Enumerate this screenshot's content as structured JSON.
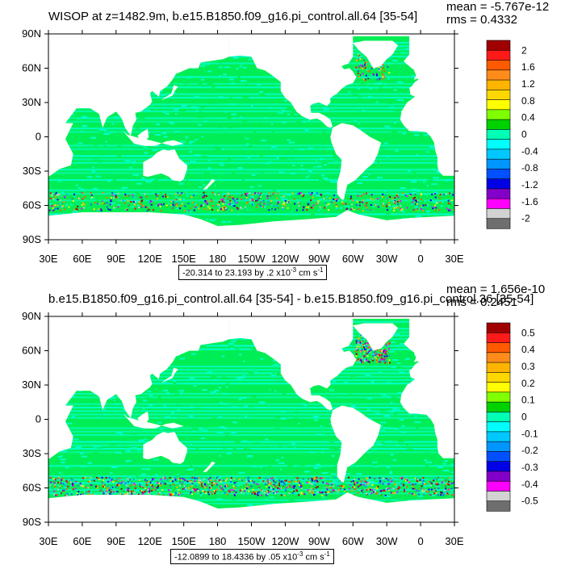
{
  "panels": [
    {
      "title": "WISOP at z=1482.9m, b.e15.B1850.f09_g16.pi_control.all.64 [35-54]",
      "mean": "mean = -5.767e-12",
      "rms": "rms = 0.4332",
      "range_text": "-20.314 to 23.193 by .2 x10",
      "range_exp": "-3",
      "range_unit": " cm s",
      "range_unit_exp": "-1",
      "colorbar_labels": [
        "2",
        "1.6",
        "1.2",
        "0.8",
        "0.4",
        "0",
        "-0.4",
        "-0.8",
        "-1.2",
        "-1.6",
        "-2"
      ]
    },
    {
      "title": "b.e15.B1850.f09_g16.pi_control.all.64 [35-54] - b.e15.B1850.f09_g16.pi_control.36 [35-54]",
      "mean": "mean = 1.656e-10",
      "rms": "rms = 0.2451",
      "range_text": "-12.0899 to 18.4336 by .05 x10",
      "range_exp": "-3",
      "range_unit": " cm s",
      "range_unit_exp": "-1",
      "colorbar_labels": [
        "0.5",
        "0.4",
        "0.3",
        "0.2",
        "0.1",
        "0",
        "-0.1",
        "-0.2",
        "-0.3",
        "-0.4",
        "-0.5"
      ]
    }
  ],
  "axes": {
    "lon_ticks": [
      "30E",
      "60E",
      "90E",
      "120E",
      "150E",
      "180",
      "150W",
      "120W",
      "90W",
      "60W",
      "30W",
      "0",
      "30E"
    ],
    "lat_ticks": [
      "90N",
      "60N",
      "30N",
      "0",
      "30S",
      "60S",
      "90S"
    ]
  },
  "colors": {
    "palette": [
      "#9b0000",
      "#ff0000",
      "#ff5a00",
      "#ff8c00",
      "#ffbe00",
      "#ffff00",
      "#32dc00",
      "#00ff40",
      "#00ffcc",
      "#00e6ff",
      "#00aaff",
      "#0064ff",
      "#0000e6",
      "#7d00d2",
      "#ff00ff",
      "#c8c8c8",
      "#6e6e6e"
    ],
    "colorbar": [
      "#a00000",
      "#ff1a1a",
      "#ff5a00",
      "#ff8c1a",
      "#ffb400",
      "#ffd700",
      "#ffff00",
      "#7fff00",
      "#00d200",
      "#00ffb4",
      "#00ffff",
      "#00c8ff",
      "#0096ff",
      "#0050ff",
      "#0000e6",
      "#8200c8",
      "#ff00ff",
      "#d2d2d2",
      "#6e6e6e"
    ],
    "ocean_base": "#00ee55",
    "ocean_alt": "#00ffcc"
  },
  "chart_data": [
    {
      "type": "heatmap",
      "title": "WISOP at z=1482.9m, b.e15.B1850.f09_g16.pi_control.all.64 [35-54]",
      "xlim": [
        "30E",
        "30E"
      ],
      "ylim": [
        "90S",
        "90N"
      ],
      "colorbar_range": [
        -2,
        2
      ],
      "data_min": -20.314,
      "data_max": 23.193
    },
    {
      "type": "heatmap",
      "title": "b.e15.B1850.f09_g16.pi_control.all.64 [35-54] - b.e15.B1850.f09_g16.pi_control.36 [35-54]",
      "xlim": [
        "30E",
        "30E"
      ],
      "ylim": [
        "90S",
        "90N"
      ],
      "colorbar_range": [
        -0.5,
        0.5
      ],
      "data_min": -12.0899,
      "data_max": 18.4336
    }
  ]
}
